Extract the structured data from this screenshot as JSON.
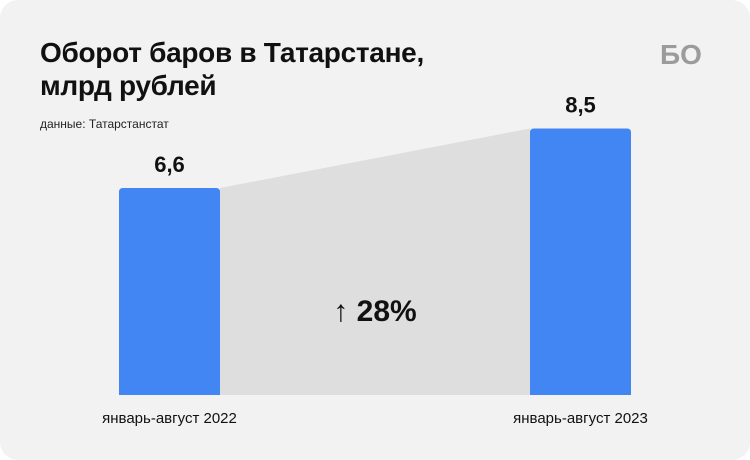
{
  "header": {
    "title_lines": [
      "Оборот баров в Татарстане,",
      "млрд рублей"
    ],
    "source": "данные: Татарстанстат"
  },
  "logo": {
    "text": "БО"
  },
  "chart_data": {
    "type": "bar",
    "title": "Оборот баров в Татарстане, млрд рублей",
    "source": "данные: Татарстанстат",
    "categories": [
      "январь-август 2022",
      "январь-август 2023"
    ],
    "values": [
      6.6,
      8.5
    ],
    "value_labels": [
      "6,6",
      "8,5"
    ],
    "change_label": "↑ 28%",
    "ylim": [
      0,
      10.3
    ],
    "grid": false,
    "bar_color": "#4286f4",
    "connector_color": "#dedede"
  }
}
